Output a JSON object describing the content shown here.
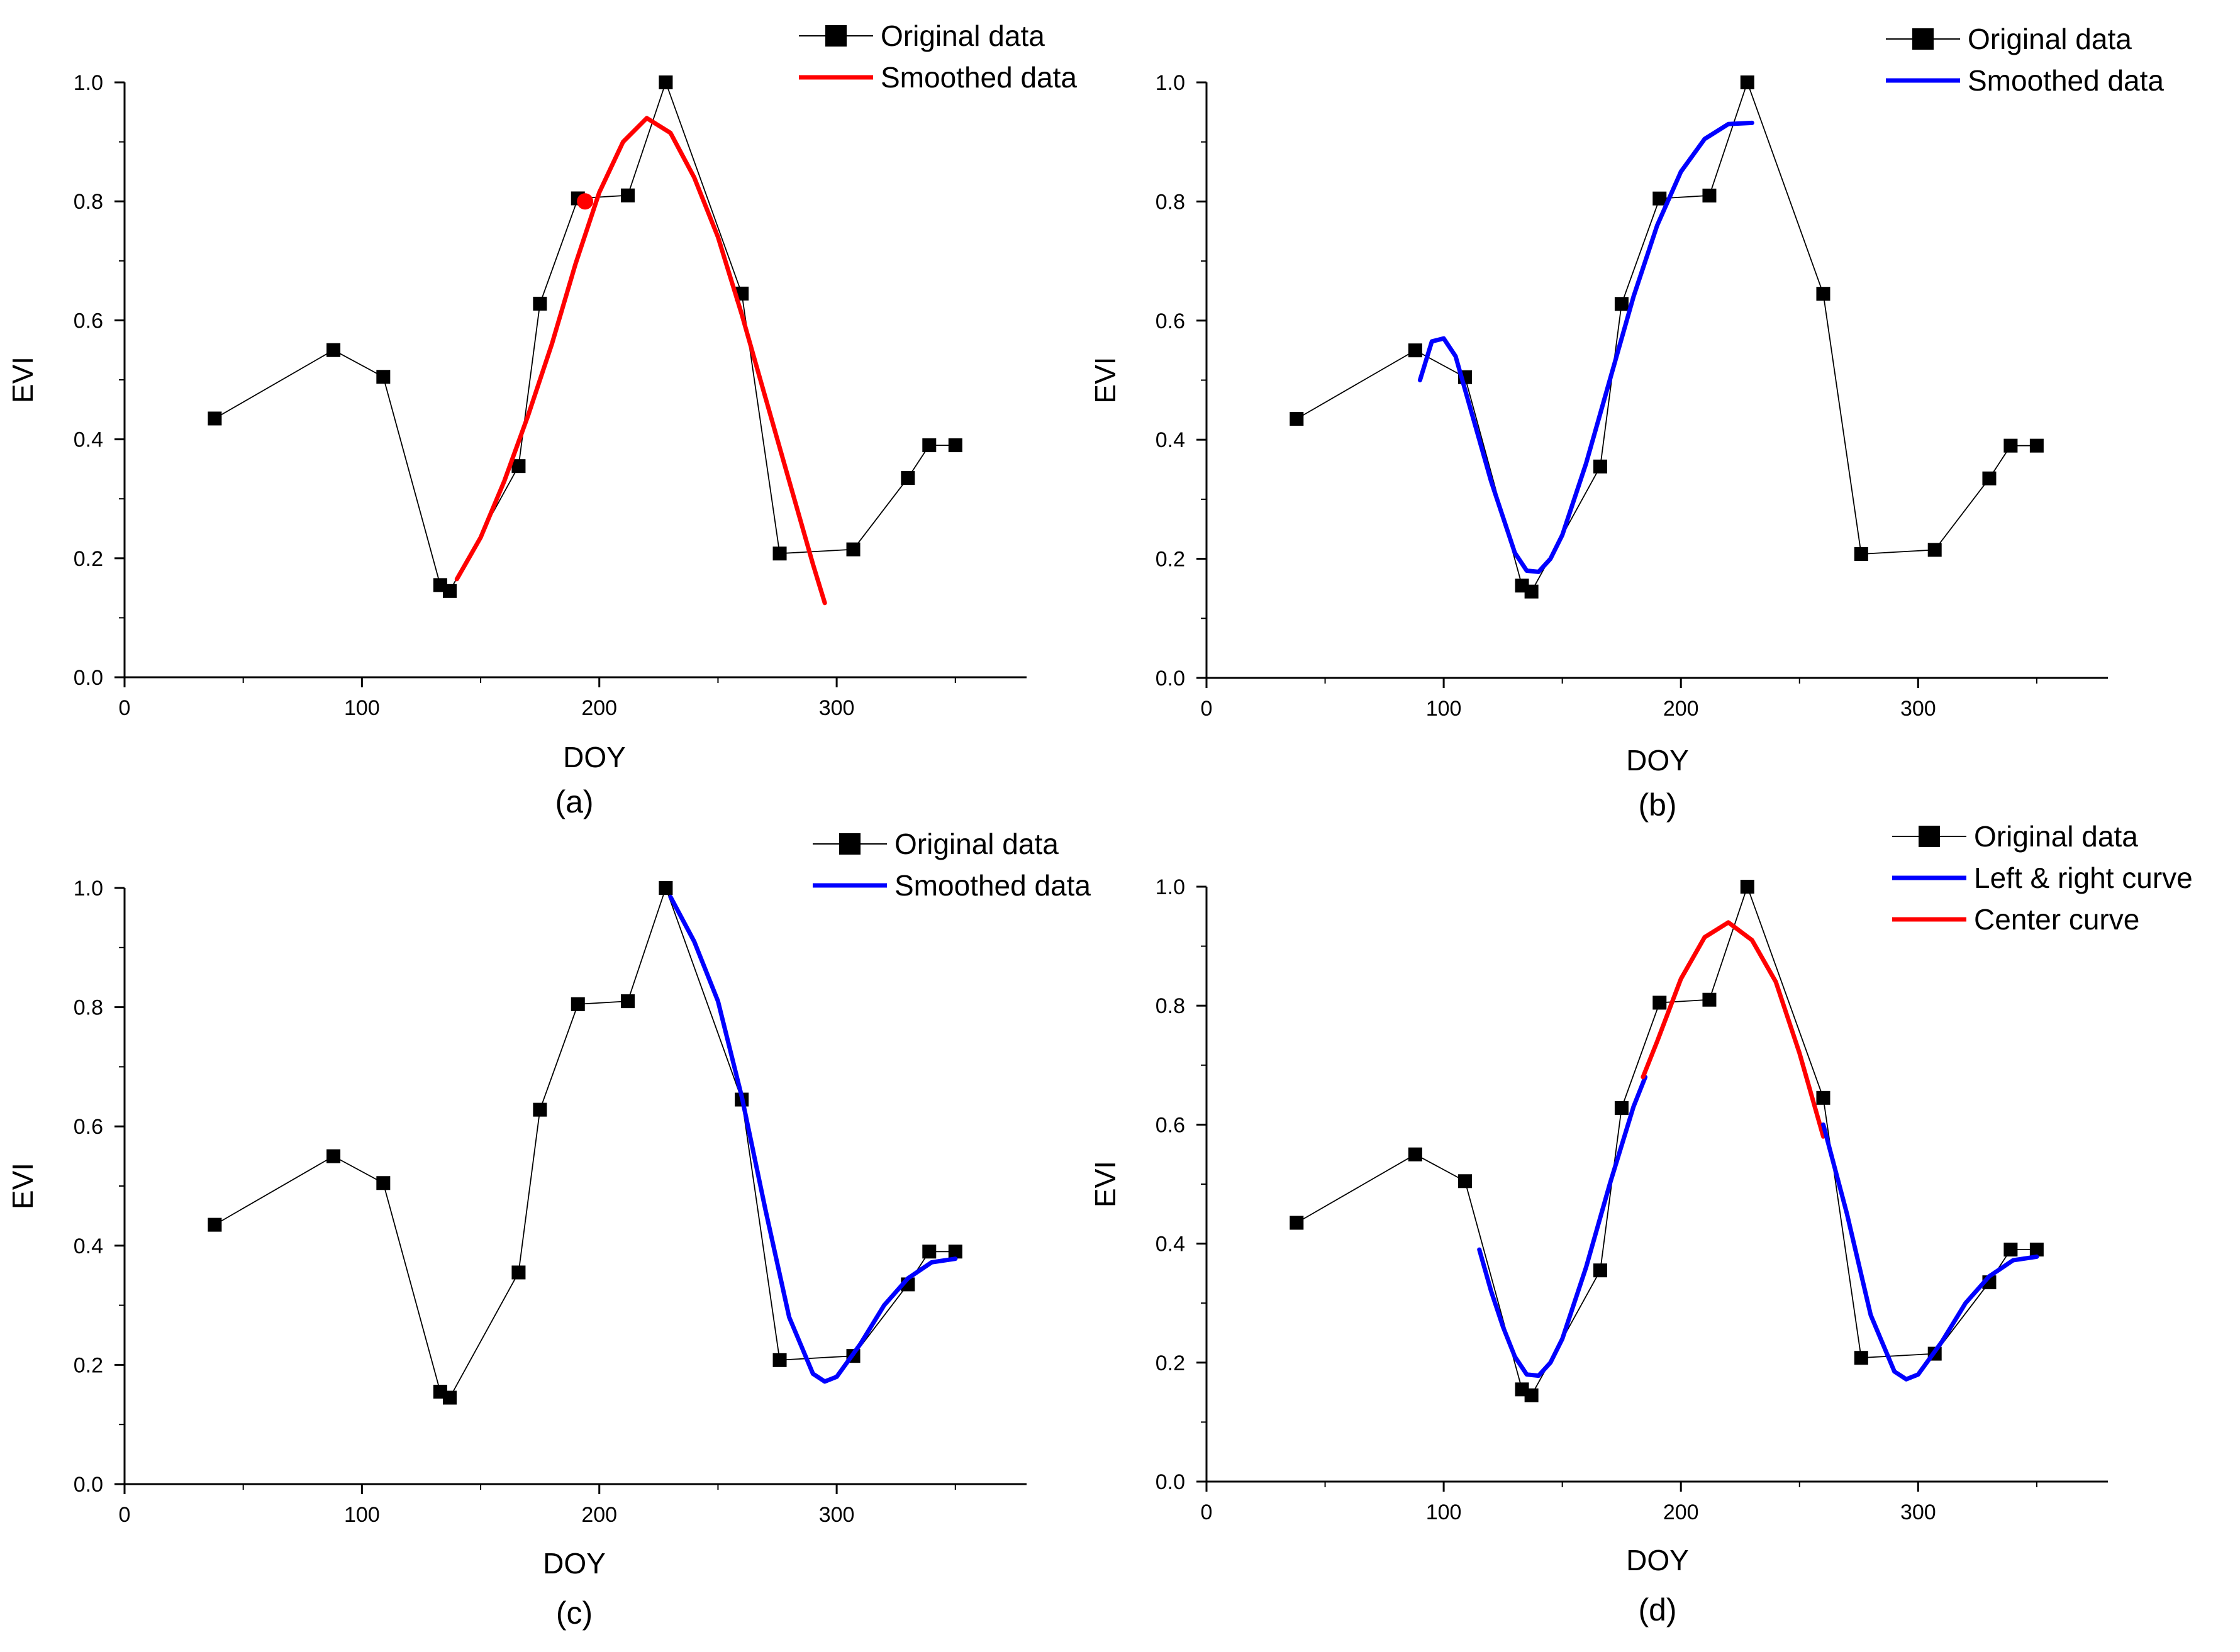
{
  "chart_data": [
    {
      "type": "line",
      "panel_label": "(a)",
      "xlabel": "DOY",
      "ylabel": "EVI",
      "xlim": [
        0,
        380
      ],
      "ylim": [
        0,
        1.0
      ],
      "xticks": [
        0,
        100,
        200,
        300
      ],
      "yticks": [
        0.0,
        0.2,
        0.4,
        0.6,
        0.8,
        1.0
      ],
      "xtick_labels": [
        "0",
        "100",
        "200",
        "300"
      ],
      "ytick_labels": [
        "0.0",
        "0.2",
        "0.4",
        "0.6",
        "0.8",
        "1.0"
      ],
      "legend": [
        {
          "label": "Original data",
          "color": "#000000",
          "kind": "marker-line"
        },
        {
          "label": "Smoothed data",
          "color": "#ff0000",
          "kind": "line"
        }
      ],
      "series": [
        {
          "name": "Original data",
          "color": "#000000",
          "x": [
            38,
            88,
            109,
            133,
            137,
            166,
            175,
            191,
            212,
            228,
            260,
            276,
            307,
            330,
            339,
            350
          ],
          "y": [
            0.435,
            0.55,
            0.505,
            0.155,
            0.145,
            0.355,
            0.628,
            0.805,
            0.81,
            1.0,
            0.645,
            0.208,
            0.215,
            0.335,
            0.39,
            0.39
          ]
        },
        {
          "name": "Smoothed data",
          "color": "#ff0000",
          "x": [
            140,
            150,
            160,
            170,
            180,
            190,
            200,
            210,
            220,
            230,
            240,
            250,
            260,
            270,
            280,
            290,
            295
          ],
          "y": [
            0.165,
            0.235,
            0.33,
            0.44,
            0.56,
            0.695,
            0.815,
            0.9,
            0.94,
            0.915,
            0.84,
            0.74,
            0.61,
            0.47,
            0.33,
            0.19,
            0.125
          ]
        }
      ],
      "annotations": [
        {
          "type": "point",
          "series": "Smoothed data",
          "x": 194,
          "y": 0.8,
          "color": "#ff0000"
        }
      ]
    },
    {
      "type": "line",
      "panel_label": "(b)",
      "xlabel": "DOY",
      "ylabel": "EVI",
      "xlim": [
        0,
        380
      ],
      "ylim": [
        0,
        1.0
      ],
      "xticks": [
        0,
        100,
        200,
        300
      ],
      "yticks": [
        0.0,
        0.2,
        0.4,
        0.6,
        0.8,
        1.0
      ],
      "xtick_labels": [
        "0",
        "100",
        "200",
        "300"
      ],
      "ytick_labels": [
        "0.0",
        "0.2",
        "0.4",
        "0.6",
        "0.8",
        "1.0"
      ],
      "legend": [
        {
          "label": "Original data",
          "color": "#000000",
          "kind": "marker-line"
        },
        {
          "label": "Smoothed data",
          "color": "#0000ff",
          "kind": "line"
        }
      ],
      "series": [
        {
          "name": "Original data",
          "color": "#000000",
          "x": [
            38,
            88,
            109,
            133,
            137,
            166,
            175,
            191,
            212,
            228,
            260,
            276,
            307,
            330,
            339,
            350
          ],
          "y": [
            0.435,
            0.55,
            0.505,
            0.155,
            0.145,
            0.355,
            0.628,
            0.805,
            0.81,
            1.0,
            0.645,
            0.208,
            0.215,
            0.335,
            0.39,
            0.39
          ]
        },
        {
          "name": "Smoothed data",
          "color": "#0000ff",
          "x": [
            90,
            95,
            100,
            105,
            110,
            120,
            130,
            135,
            140,
            145,
            150,
            160,
            170,
            180,
            190,
            200,
            210,
            220,
            230
          ],
          "y": [
            0.5,
            0.565,
            0.57,
            0.54,
            0.47,
            0.33,
            0.21,
            0.18,
            0.178,
            0.2,
            0.24,
            0.36,
            0.5,
            0.64,
            0.76,
            0.85,
            0.905,
            0.93,
            0.932
          ]
        }
      ]
    },
    {
      "type": "line",
      "panel_label": "(c)",
      "xlabel": "DOY",
      "ylabel": "EVI",
      "xlim": [
        0,
        380
      ],
      "ylim": [
        0,
        1.0
      ],
      "xticks": [
        0,
        100,
        200,
        300
      ],
      "yticks": [
        0.0,
        0.2,
        0.4,
        0.6,
        0.8,
        1.0
      ],
      "xtick_labels": [
        "0",
        "100",
        "200",
        "300"
      ],
      "ytick_labels": [
        "0.0",
        "0.2",
        "0.4",
        "0.6",
        "0.8",
        "1.0"
      ],
      "legend": [
        {
          "label": "Original data",
          "color": "#000000",
          "kind": "marker-line"
        },
        {
          "label": "Smoothed data",
          "color": "#0000ff",
          "kind": "line"
        }
      ],
      "series": [
        {
          "name": "Original data",
          "color": "#000000",
          "x": [
            38,
            88,
            109,
            133,
            137,
            166,
            175,
            191,
            212,
            228,
            260,
            276,
            307,
            330,
            339,
            350
          ],
          "y": [
            0.435,
            0.55,
            0.505,
            0.155,
            0.145,
            0.355,
            0.628,
            0.805,
            0.81,
            1.0,
            0.645,
            0.208,
            0.215,
            0.335,
            0.39,
            0.39
          ]
        },
        {
          "name": "Smoothed data",
          "color": "#0000ff",
          "x": [
            230,
            240,
            250,
            260,
            270,
            280,
            290,
            295,
            300,
            310,
            320,
            330,
            340,
            350
          ],
          "y": [
            0.985,
            0.91,
            0.81,
            0.65,
            0.46,
            0.28,
            0.185,
            0.172,
            0.18,
            0.235,
            0.3,
            0.345,
            0.372,
            0.378
          ]
        }
      ]
    },
    {
      "type": "line",
      "panel_label": "(d)",
      "xlabel": "DOY",
      "ylabel": "EVI",
      "xlim": [
        0,
        380
      ],
      "ylim": [
        0,
        1.0
      ],
      "xticks": [
        0,
        100,
        200,
        300
      ],
      "yticks": [
        0.0,
        0.2,
        0.4,
        0.6,
        0.8,
        1.0
      ],
      "xtick_labels": [
        "0",
        "100",
        "200",
        "300"
      ],
      "ytick_labels": [
        "0.0",
        "0.2",
        "0.4",
        "0.6",
        "0.8",
        "1.0"
      ],
      "legend": [
        {
          "label": "Original data",
          "color": "#000000",
          "kind": "marker-line"
        },
        {
          "label": "Left & right curve",
          "color": "#0000ff",
          "kind": "line"
        },
        {
          "label": "Center curve",
          "color": "#ff0000",
          "kind": "line"
        }
      ],
      "series": [
        {
          "name": "Original data",
          "color": "#000000",
          "x": [
            38,
            88,
            109,
            133,
            137,
            166,
            175,
            191,
            212,
            228,
            260,
            276,
            307,
            330,
            339,
            350
          ],
          "y": [
            0.435,
            0.55,
            0.505,
            0.155,
            0.145,
            0.355,
            0.628,
            0.805,
            0.81,
            1.0,
            0.645,
            0.208,
            0.215,
            0.335,
            0.39,
            0.39
          ]
        },
        {
          "name": "Left curve",
          "color": "#0000ff",
          "x": [
            115,
            120,
            125,
            130,
            135,
            140,
            145,
            150,
            160,
            170,
            180,
            185
          ],
          "y": [
            0.39,
            0.32,
            0.26,
            0.21,
            0.18,
            0.178,
            0.2,
            0.24,
            0.36,
            0.5,
            0.63,
            0.68
          ]
        },
        {
          "name": "Center curve",
          "color": "#ff0000",
          "x": [
            184,
            190,
            200,
            210,
            220,
            230,
            240,
            250,
            260
          ],
          "y": [
            0.68,
            0.74,
            0.845,
            0.915,
            0.94,
            0.91,
            0.84,
            0.72,
            0.58
          ]
        },
        {
          "name": "Right curve",
          "color": "#0000ff",
          "x": [
            260,
            270,
            280,
            290,
            295,
            300,
            310,
            320,
            330,
            340,
            350
          ],
          "y": [
            0.6,
            0.45,
            0.28,
            0.185,
            0.172,
            0.18,
            0.235,
            0.3,
            0.345,
            0.372,
            0.378
          ]
        }
      ]
    }
  ]
}
